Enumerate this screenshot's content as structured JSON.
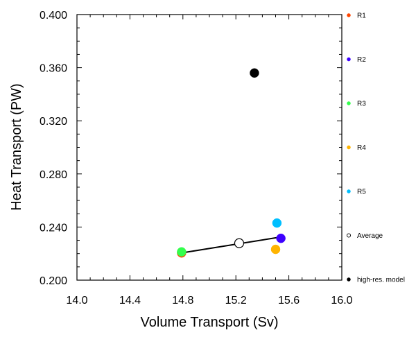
{
  "chart_data": {
    "type": "scatter",
    "xlabel": "Volume Transport (Sv)",
    "ylabel": "Heat Transport (PW)",
    "xlim": [
      14.0,
      16.0
    ],
    "ylim": [
      0.2,
      0.4
    ],
    "xticks": [
      "14.0",
      "14.4",
      "14.8",
      "15.2",
      "15.6",
      "16.0"
    ],
    "yticks": [
      "0.200",
      "0.240",
      "0.280",
      "0.320",
      "0.360",
      "0.400"
    ],
    "grid": false,
    "legend_position": "right",
    "points": [
      {
        "name": "R1",
        "x": 14.79,
        "y": 0.2205,
        "color": "#ff4500",
        "filled": true
      },
      {
        "name": "R2",
        "x": 15.54,
        "y": 0.2315,
        "color": "#3d00ff",
        "filled": true
      },
      {
        "name": "R3",
        "x": 14.79,
        "y": 0.2213,
        "color": "#33ff4d",
        "filled": true
      },
      {
        "name": "R4",
        "x": 15.5,
        "y": 0.2232,
        "color": "#ffb400",
        "filled": true
      },
      {
        "name": "R5",
        "x": 15.51,
        "y": 0.243,
        "color": "#00bfff",
        "filled": true
      },
      {
        "name": "Average",
        "x": 15.225,
        "y": 0.2278,
        "color": "#000000",
        "filled": false
      },
      {
        "name": "high-res. model",
        "x": 15.34,
        "y": 0.356,
        "color": "#000000",
        "filled": true
      }
    ],
    "fit_line": {
      "x": [
        14.79,
        15.54
      ],
      "y": [
        0.2205,
        0.2325
      ],
      "color": "#000000"
    }
  }
}
